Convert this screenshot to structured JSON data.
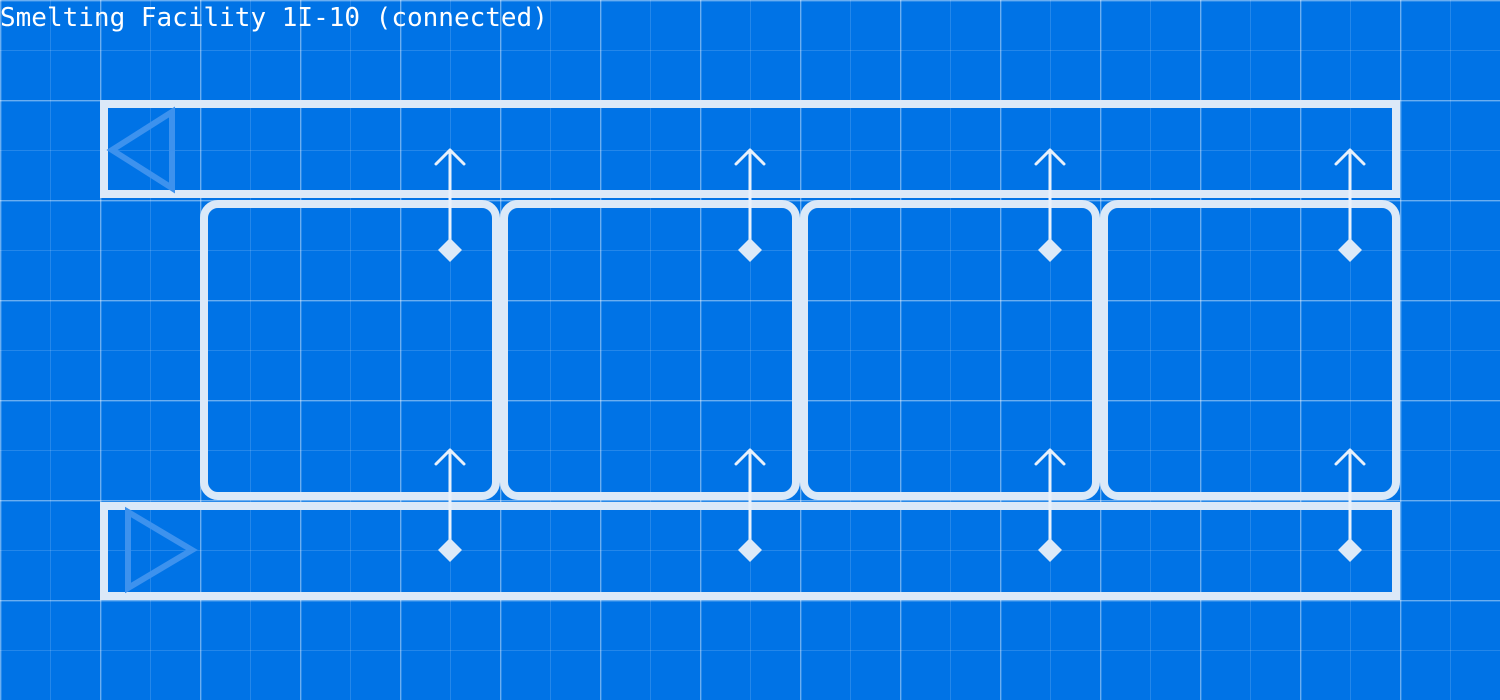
{
  "facility": {
    "title": "Smelting Facility 1I-10 (connected)"
  },
  "belts": [
    {
      "id": "input-belt",
      "direction": "left"
    },
    {
      "id": "output-belt",
      "direction": "right"
    }
  ],
  "bays": [
    {
      "id": "bay-1"
    },
    {
      "id": "bay-2"
    },
    {
      "id": "bay-3"
    },
    {
      "id": "bay-4"
    }
  ],
  "inserters": [
    {
      "bay": 1,
      "row": "top",
      "direction": "up"
    },
    {
      "bay": 2,
      "row": "top",
      "direction": "up"
    },
    {
      "bay": 3,
      "row": "top",
      "direction": "up"
    },
    {
      "bay": 4,
      "row": "top",
      "direction": "up"
    },
    {
      "bay": 1,
      "row": "bottom",
      "direction": "up"
    },
    {
      "bay": 2,
      "row": "bottom",
      "direction": "up"
    },
    {
      "bay": 3,
      "row": "bottom",
      "direction": "up"
    },
    {
      "bay": 4,
      "row": "bottom",
      "direction": "up"
    }
  ],
  "colors": {
    "background": "#0073e6",
    "outline": "#dbe9f8",
    "arrow": "#3d92ee",
    "text": "#ffffff"
  }
}
